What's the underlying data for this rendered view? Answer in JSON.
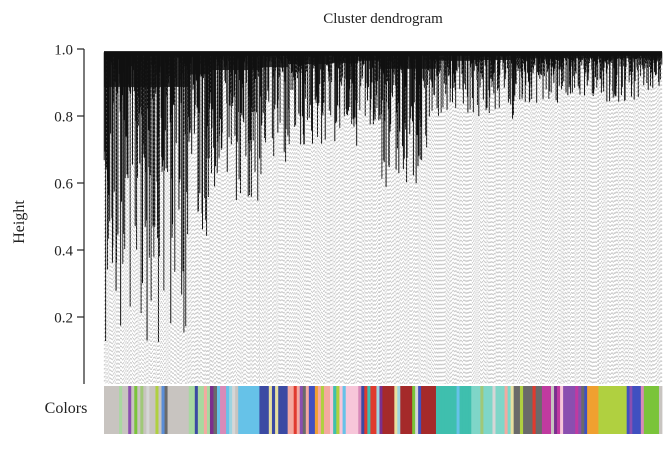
{
  "chart_data": {
    "type": "dendrogram",
    "title": "Cluster dendrogram",
    "ylabel": "Height",
    "ylim": [
      0.0,
      1.0
    ],
    "yticks": [
      "0.2",
      "0.4",
      "0.6",
      "0.8",
      "1.0"
    ],
    "ytick_values": [
      0.2,
      0.4,
      0.6,
      0.8,
      1.0
    ],
    "color_bar_label": "Colors",
    "grid": false,
    "top_merge_height": 0.99,
    "modules": [
      {
        "color": "#c8c4c0",
        "weight": 12,
        "min_height": 0.13
      },
      {
        "color": "#a8d8a0",
        "weight": 3,
        "min_height": 0.44
      },
      {
        "color": "#7b2f8e",
        "weight": 1,
        "min_height": 0.55
      },
      {
        "color": "#66c2e8",
        "weight": 6,
        "min_height": 0.55
      },
      {
        "color": "#3b4aa3",
        "weight": 4,
        "min_height": 0.62
      },
      {
        "color": "#f4a9a0",
        "weight": 6,
        "min_height": 0.7
      },
      {
        "color": "#f7c6d9",
        "weight": 4,
        "min_height": 0.72
      },
      {
        "color": "#e03a2e",
        "weight": 3,
        "min_height": 0.78
      },
      {
        "color": "#a52a2a",
        "weight": 8,
        "min_height": 0.58
      },
      {
        "color": "#3fbfae",
        "weight": 5,
        "min_height": 0.78
      },
      {
        "color": "#7fd6c8",
        "weight": 6,
        "min_height": 0.8
      },
      {
        "color": "#6a6a6a",
        "weight": 4,
        "min_height": 0.84
      },
      {
        "color": "#c03aa0",
        "weight": 3,
        "min_height": 0.83
      },
      {
        "color": "#8a4fb0",
        "weight": 3,
        "min_height": 0.85
      },
      {
        "color": "#f0a030",
        "weight": 2,
        "min_height": 0.86
      },
      {
        "color": "#b0d040",
        "weight": 4,
        "min_height": 0.84
      },
      {
        "color": "#4050c0",
        "weight": 2,
        "min_height": 0.84
      },
      {
        "color": "#7ac43a",
        "weight": 3,
        "min_height": 0.88
      }
    ],
    "stripe_colors": [
      "#c8c4c0",
      "#a8d8a0",
      "#7b2f8e",
      "#66c2e8",
      "#3b4aa3",
      "#f4a9a0",
      "#f7c6d9",
      "#e03a2e",
      "#a52a2a",
      "#3fbfae",
      "#7fd6c8",
      "#6a6a6a",
      "#c03aa0",
      "#8a4fb0",
      "#f0a030",
      "#b0d040",
      "#4050c0",
      "#7ac43a",
      "#d6d6d6",
      "#9ed4e0",
      "#d88ab8",
      "#a0c878",
      "#5a8ed8",
      "#e8e0a0"
    ]
  }
}
